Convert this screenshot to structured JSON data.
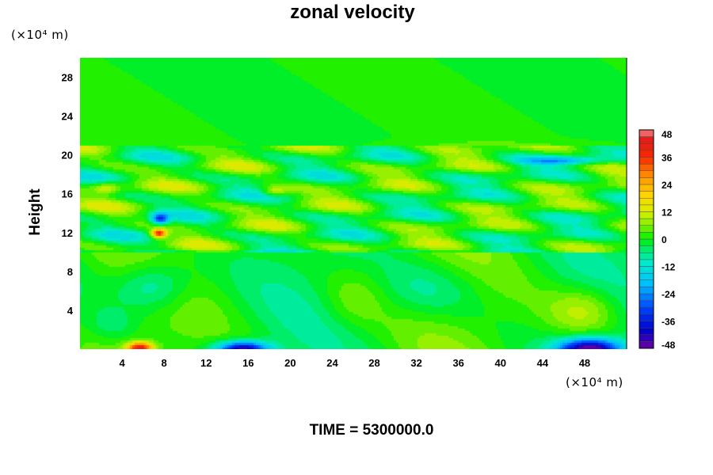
{
  "chart_data": {
    "type": "heatmap",
    "title": "zonal velocity",
    "xlabel": "",
    "ylabel": "Height",
    "x_unit": "(×10⁴ m)",
    "y_unit": "(×10⁴ m)",
    "xlim": [
      0,
      52
    ],
    "ylim": [
      0,
      30
    ],
    "x_ticks": [
      4,
      8,
      12,
      16,
      20,
      24,
      28,
      32,
      36,
      40,
      44,
      48
    ],
    "y_ticks": [
      4,
      8,
      12,
      16,
      20,
      24,
      28
    ],
    "colorbar": {
      "min": -48,
      "max": 48,
      "labels": [
        48,
        36,
        24,
        12,
        0,
        -12,
        -24,
        -36,
        -48
      ],
      "levels": 32,
      "colormap": "rainbow"
    },
    "features": [
      {
        "x": 5.7,
        "y": 0.3,
        "value": 38
      },
      {
        "x": 15.5,
        "y": 0.2,
        "value": -40
      },
      {
        "x": 48.5,
        "y": 0.2,
        "value": -42
      },
      {
        "x": 7.5,
        "y": 11.9,
        "value": 36
      },
      {
        "x": 7.6,
        "y": 13.4,
        "value": -26
      },
      {
        "x": 7.0,
        "y": 6.5,
        "value": -16
      },
      {
        "x": 48.0,
        "y": 4.0,
        "value": 14
      },
      {
        "x": 2.5,
        "y": 16.6,
        "value": 16
      },
      {
        "x": 18.5,
        "y": 16.2,
        "value": 15
      },
      {
        "x": 46.0,
        "y": 19.5,
        "value": -18
      }
    ],
    "grid": false
  },
  "footer": {
    "time_label": "TIME = 5300000.0"
  }
}
